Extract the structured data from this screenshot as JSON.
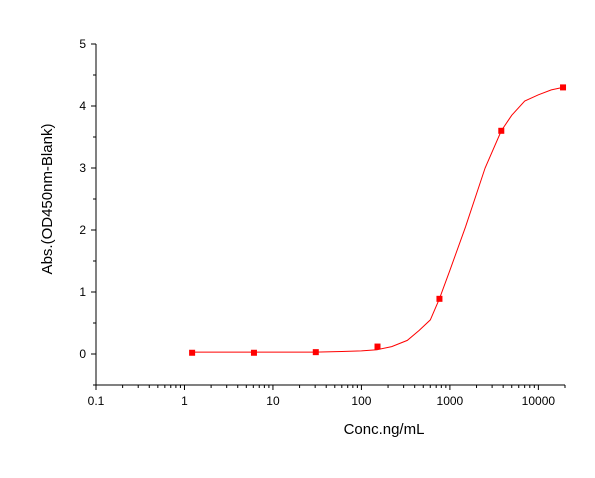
{
  "chart_data": {
    "type": "scatter",
    "title": "",
    "xlabel": "Conc.ng/mL",
    "ylabel": "Abs.(OD450nm-Blank)",
    "x_scale": "log",
    "xlim": [
      0.1,
      20000
    ],
    "ylim": [
      -0.5,
      5
    ],
    "x_ticks": [
      {
        "value": 0.1,
        "label": "0.1"
      },
      {
        "value": 1,
        "label": "1"
      },
      {
        "value": 10,
        "label": "10"
      },
      {
        "value": 100,
        "label": "100"
      },
      {
        "value": 1000,
        "label": "1000"
      },
      {
        "value": 10000,
        "label": "10000"
      }
    ],
    "y_ticks": [
      {
        "value": 0,
        "label": "0"
      },
      {
        "value": 1,
        "label": "1"
      },
      {
        "value": 2,
        "label": "2"
      },
      {
        "value": 3,
        "label": "3"
      },
      {
        "value": 4,
        "label": "4"
      },
      {
        "value": 5,
        "label": "5"
      }
    ],
    "grid": false,
    "legend": "none",
    "series": [
      {
        "marker": "square",
        "color": "#ff0000",
        "points": [
          {
            "x": 1.22,
            "y": 0.02
          },
          {
            "x": 6.1,
            "y": 0.02
          },
          {
            "x": 30.5,
            "y": 0.03
          },
          {
            "x": 152,
            "y": 0.12
          },
          {
            "x": 762,
            "y": 0.89
          },
          {
            "x": 3810,
            "y": 3.6
          },
          {
            "x": 19000,
            "y": 4.3
          }
        ]
      }
    ],
    "fit_curve": {
      "color": "#ff0000",
      "points": [
        {
          "x": 1.22,
          "y": 0.03
        },
        {
          "x": 10,
          "y": 0.03
        },
        {
          "x": 30,
          "y": 0.03
        },
        {
          "x": 60,
          "y": 0.04
        },
        {
          "x": 100,
          "y": 0.05
        },
        {
          "x": 150,
          "y": 0.07
        },
        {
          "x": 220,
          "y": 0.12
        },
        {
          "x": 330,
          "y": 0.22
        },
        {
          "x": 450,
          "y": 0.38
        },
        {
          "x": 600,
          "y": 0.55
        },
        {
          "x": 762,
          "y": 0.89
        },
        {
          "x": 1000,
          "y": 1.35
        },
        {
          "x": 1500,
          "y": 2.05
        },
        {
          "x": 2500,
          "y": 3.0
        },
        {
          "x": 3810,
          "y": 3.6
        },
        {
          "x": 5000,
          "y": 3.85
        },
        {
          "x": 7000,
          "y": 4.08
        },
        {
          "x": 10000,
          "y": 4.18
        },
        {
          "x": 14000,
          "y": 4.26
        },
        {
          "x": 19000,
          "y": 4.3
        }
      ]
    }
  }
}
